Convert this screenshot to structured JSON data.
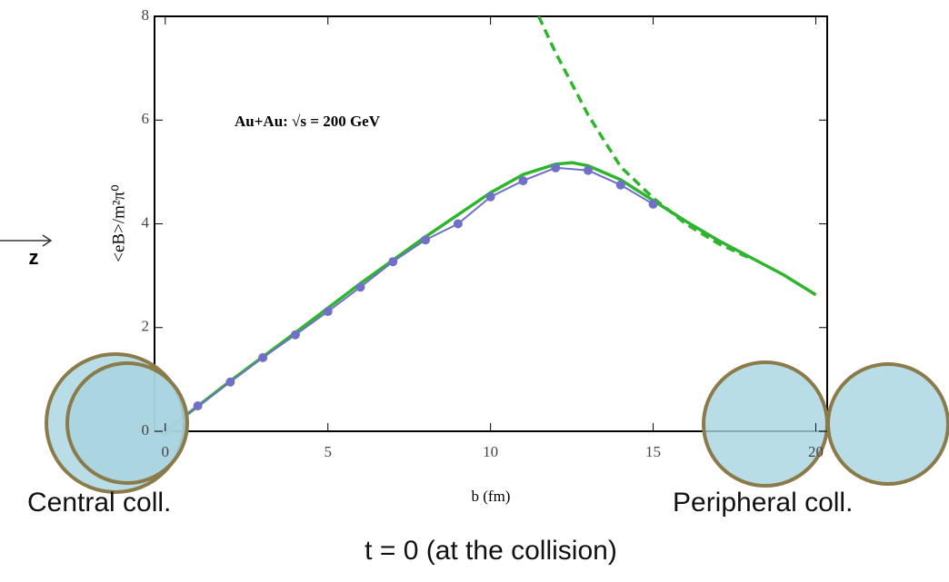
{
  "chart_data": {
    "type": "line",
    "x_label": "b (fm)",
    "y_label": "<eB>/m²π⁰",
    "annotation": "Au+Au: √s  = 200 GeV",
    "xlim": [
      -0.33,
      20.35
    ],
    "ylim": [
      0,
      8
    ],
    "xticks": [
      0,
      5,
      10,
      15,
      20
    ],
    "yticks": [
      0,
      2,
      4,
      6,
      8
    ],
    "series": [
      {
        "color": "#2db52d",
        "dash": false,
        "markers": false,
        "x": [
          0,
          2,
          4,
          6,
          8,
          10,
          11,
          12,
          12.5,
          13,
          14,
          15,
          16,
          17,
          18,
          19,
          20
        ],
        "values": [
          0,
          0.97,
          1.9,
          2.85,
          3.75,
          4.6,
          4.95,
          5.15,
          5.18,
          5.12,
          4.85,
          4.45,
          4.05,
          3.68,
          3.35,
          3.02,
          2.63
        ]
      },
      {
        "color": "#2db52d",
        "dash": true,
        "markers": false,
        "x": [
          11.48,
          12,
          13,
          14,
          15,
          16,
          17,
          18
        ],
        "values": [
          8,
          7.3,
          6.1,
          5.1,
          4.5,
          4.0,
          3.62,
          3.33
        ]
      },
      {
        "color": "#7070c8",
        "dash": false,
        "markers": true,
        "x": [
          0,
          1,
          2,
          3,
          4,
          5,
          6,
          7,
          8,
          9,
          10,
          11,
          12,
          13,
          14,
          15
        ],
        "values": [
          0,
          0.49,
          0.95,
          1.42,
          1.86,
          2.31,
          2.78,
          3.27,
          3.69,
          4.0,
          4.52,
          4.83,
          5.08,
          5.03,
          4.75,
          4.38
        ]
      }
    ],
    "overlay_texts": [
      "z",
      "Central coll.",
      "Peripheral coll.",
      "t = 0 (at the collision)"
    ]
  }
}
